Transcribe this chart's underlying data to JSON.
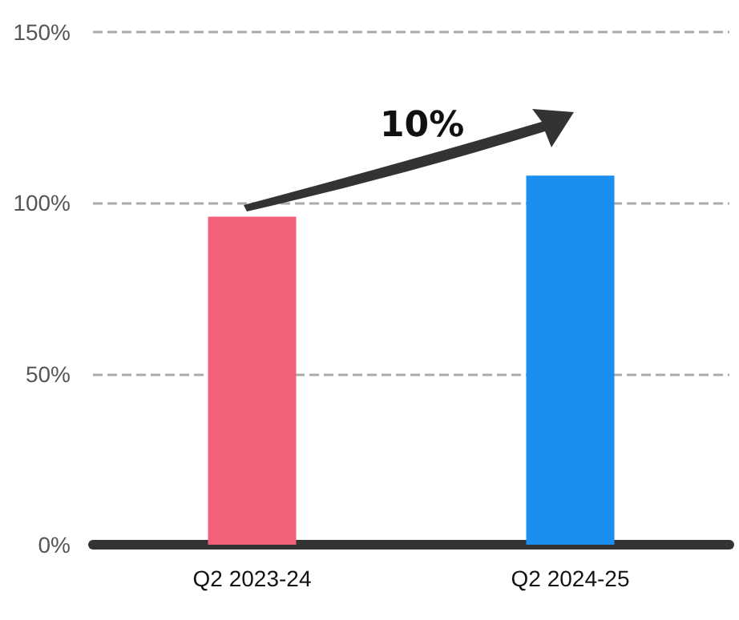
{
  "chart_data": {
    "type": "bar",
    "categories": [
      "Q2 2023-24",
      "Q2 2024-25"
    ],
    "values": [
      96,
      108
    ],
    "colors": [
      "#f2607a",
      "#1a8ff0"
    ],
    "ylim": [
      0,
      150
    ],
    "yticks": [
      {
        "value": 0,
        "label": "0%"
      },
      {
        "value": 50,
        "label": "50%"
      },
      {
        "value": 100,
        "label": "100%"
      },
      {
        "value": 150,
        "label": "150%"
      }
    ],
    "grid": "y",
    "annotations": [
      "10%"
    ]
  }
}
